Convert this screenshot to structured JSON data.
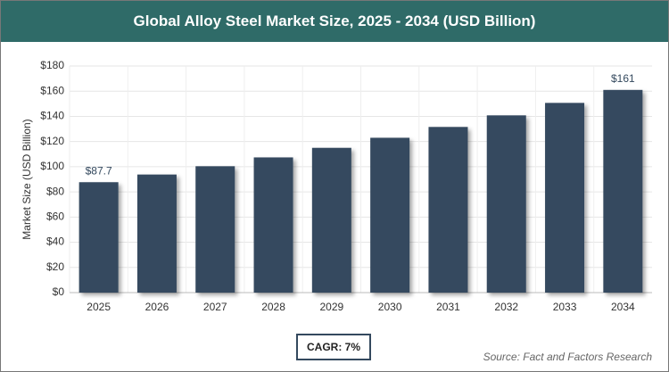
{
  "chart_data": {
    "type": "bar",
    "title": "Global Alloy Steel Market Size, 2025 - 2034 (USD Billion)",
    "y_label": "Market Size (USD Billion)",
    "categories": [
      "2025",
      "2026",
      "2027",
      "2028",
      "2029",
      "2030",
      "2031",
      "2032",
      "2033",
      "2034"
    ],
    "values": [
      87.7,
      93.8,
      100.4,
      107.4,
      115,
      123,
      131.6,
      140.8,
      150.7,
      161
    ],
    "value_labels": [
      "$87.7",
      null,
      null,
      null,
      null,
      null,
      null,
      null,
      null,
      "$161"
    ],
    "color": "#34495e",
    "ylim": [
      0,
      180
    ],
    "yticks": [
      {
        "value": 0,
        "label": "$0"
      },
      {
        "value": 20,
        "label": "$20"
      },
      {
        "value": 40,
        "label": "$40"
      },
      {
        "value": 60,
        "label": "$60"
      },
      {
        "value": 80,
        "label": "$80"
      },
      {
        "value": 100,
        "label": "$100"
      },
      {
        "value": 120,
        "label": "$120"
      },
      {
        "value": 140,
        "label": "$140"
      },
      {
        "value": 160,
        "label": "$160"
      },
      {
        "value": 180,
        "label": "$180"
      }
    ],
    "grid": true,
    "cagr": "CAGR: 7%",
    "source": "Source: Fact and Factors Research"
  }
}
